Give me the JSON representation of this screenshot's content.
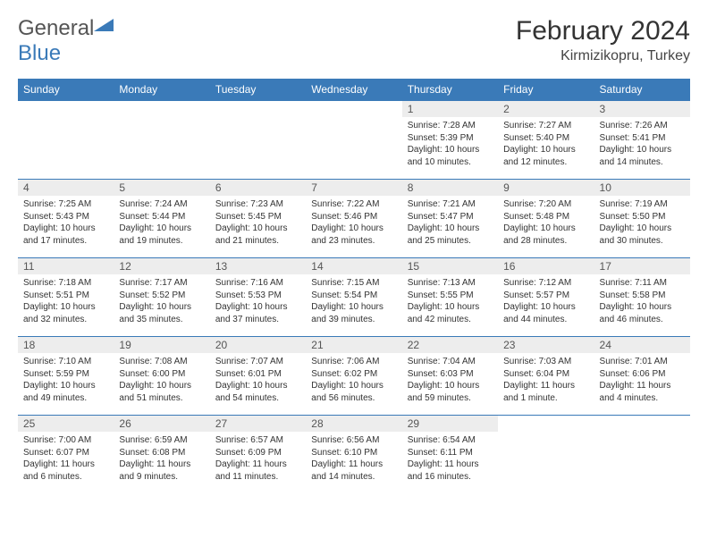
{
  "logo": {
    "text1": "General",
    "text2": "Blue"
  },
  "title": "February 2024",
  "location": "Kirmizikopru, Turkey",
  "day_headers": [
    "Sunday",
    "Monday",
    "Tuesday",
    "Wednesday",
    "Thursday",
    "Friday",
    "Saturday"
  ],
  "colors": {
    "header_bg": "#3a7ab8",
    "header_text": "#ffffff",
    "daynum_bg": "#ededed",
    "border": "#3a7ab8",
    "body_text": "#333333"
  },
  "weeks": [
    [
      {
        "n": "",
        "sunrise": "",
        "sunset": "",
        "daylight": ""
      },
      {
        "n": "",
        "sunrise": "",
        "sunset": "",
        "daylight": ""
      },
      {
        "n": "",
        "sunrise": "",
        "sunset": "",
        "daylight": ""
      },
      {
        "n": "",
        "sunrise": "",
        "sunset": "",
        "daylight": ""
      },
      {
        "n": "1",
        "sunrise": "Sunrise: 7:28 AM",
        "sunset": "Sunset: 5:39 PM",
        "daylight": "Daylight: 10 hours and 10 minutes."
      },
      {
        "n": "2",
        "sunrise": "Sunrise: 7:27 AM",
        "sunset": "Sunset: 5:40 PM",
        "daylight": "Daylight: 10 hours and 12 minutes."
      },
      {
        "n": "3",
        "sunrise": "Sunrise: 7:26 AM",
        "sunset": "Sunset: 5:41 PM",
        "daylight": "Daylight: 10 hours and 14 minutes."
      }
    ],
    [
      {
        "n": "4",
        "sunrise": "Sunrise: 7:25 AM",
        "sunset": "Sunset: 5:43 PM",
        "daylight": "Daylight: 10 hours and 17 minutes."
      },
      {
        "n": "5",
        "sunrise": "Sunrise: 7:24 AM",
        "sunset": "Sunset: 5:44 PM",
        "daylight": "Daylight: 10 hours and 19 minutes."
      },
      {
        "n": "6",
        "sunrise": "Sunrise: 7:23 AM",
        "sunset": "Sunset: 5:45 PM",
        "daylight": "Daylight: 10 hours and 21 minutes."
      },
      {
        "n": "7",
        "sunrise": "Sunrise: 7:22 AM",
        "sunset": "Sunset: 5:46 PM",
        "daylight": "Daylight: 10 hours and 23 minutes."
      },
      {
        "n": "8",
        "sunrise": "Sunrise: 7:21 AM",
        "sunset": "Sunset: 5:47 PM",
        "daylight": "Daylight: 10 hours and 25 minutes."
      },
      {
        "n": "9",
        "sunrise": "Sunrise: 7:20 AM",
        "sunset": "Sunset: 5:48 PM",
        "daylight": "Daylight: 10 hours and 28 minutes."
      },
      {
        "n": "10",
        "sunrise": "Sunrise: 7:19 AM",
        "sunset": "Sunset: 5:50 PM",
        "daylight": "Daylight: 10 hours and 30 minutes."
      }
    ],
    [
      {
        "n": "11",
        "sunrise": "Sunrise: 7:18 AM",
        "sunset": "Sunset: 5:51 PM",
        "daylight": "Daylight: 10 hours and 32 minutes."
      },
      {
        "n": "12",
        "sunrise": "Sunrise: 7:17 AM",
        "sunset": "Sunset: 5:52 PM",
        "daylight": "Daylight: 10 hours and 35 minutes."
      },
      {
        "n": "13",
        "sunrise": "Sunrise: 7:16 AM",
        "sunset": "Sunset: 5:53 PM",
        "daylight": "Daylight: 10 hours and 37 minutes."
      },
      {
        "n": "14",
        "sunrise": "Sunrise: 7:15 AM",
        "sunset": "Sunset: 5:54 PM",
        "daylight": "Daylight: 10 hours and 39 minutes."
      },
      {
        "n": "15",
        "sunrise": "Sunrise: 7:13 AM",
        "sunset": "Sunset: 5:55 PM",
        "daylight": "Daylight: 10 hours and 42 minutes."
      },
      {
        "n": "16",
        "sunrise": "Sunrise: 7:12 AM",
        "sunset": "Sunset: 5:57 PM",
        "daylight": "Daylight: 10 hours and 44 minutes."
      },
      {
        "n": "17",
        "sunrise": "Sunrise: 7:11 AM",
        "sunset": "Sunset: 5:58 PM",
        "daylight": "Daylight: 10 hours and 46 minutes."
      }
    ],
    [
      {
        "n": "18",
        "sunrise": "Sunrise: 7:10 AM",
        "sunset": "Sunset: 5:59 PM",
        "daylight": "Daylight: 10 hours and 49 minutes."
      },
      {
        "n": "19",
        "sunrise": "Sunrise: 7:08 AM",
        "sunset": "Sunset: 6:00 PM",
        "daylight": "Daylight: 10 hours and 51 minutes."
      },
      {
        "n": "20",
        "sunrise": "Sunrise: 7:07 AM",
        "sunset": "Sunset: 6:01 PM",
        "daylight": "Daylight: 10 hours and 54 minutes."
      },
      {
        "n": "21",
        "sunrise": "Sunrise: 7:06 AM",
        "sunset": "Sunset: 6:02 PM",
        "daylight": "Daylight: 10 hours and 56 minutes."
      },
      {
        "n": "22",
        "sunrise": "Sunrise: 7:04 AM",
        "sunset": "Sunset: 6:03 PM",
        "daylight": "Daylight: 10 hours and 59 minutes."
      },
      {
        "n": "23",
        "sunrise": "Sunrise: 7:03 AM",
        "sunset": "Sunset: 6:04 PM",
        "daylight": "Daylight: 11 hours and 1 minute."
      },
      {
        "n": "24",
        "sunrise": "Sunrise: 7:01 AM",
        "sunset": "Sunset: 6:06 PM",
        "daylight": "Daylight: 11 hours and 4 minutes."
      }
    ],
    [
      {
        "n": "25",
        "sunrise": "Sunrise: 7:00 AM",
        "sunset": "Sunset: 6:07 PM",
        "daylight": "Daylight: 11 hours and 6 minutes."
      },
      {
        "n": "26",
        "sunrise": "Sunrise: 6:59 AM",
        "sunset": "Sunset: 6:08 PM",
        "daylight": "Daylight: 11 hours and 9 minutes."
      },
      {
        "n": "27",
        "sunrise": "Sunrise: 6:57 AM",
        "sunset": "Sunset: 6:09 PM",
        "daylight": "Daylight: 11 hours and 11 minutes."
      },
      {
        "n": "28",
        "sunrise": "Sunrise: 6:56 AM",
        "sunset": "Sunset: 6:10 PM",
        "daylight": "Daylight: 11 hours and 14 minutes."
      },
      {
        "n": "29",
        "sunrise": "Sunrise: 6:54 AM",
        "sunset": "Sunset: 6:11 PM",
        "daylight": "Daylight: 11 hours and 16 minutes."
      },
      {
        "n": "",
        "sunrise": "",
        "sunset": "",
        "daylight": ""
      },
      {
        "n": "",
        "sunrise": "",
        "sunset": "",
        "daylight": ""
      }
    ]
  ]
}
